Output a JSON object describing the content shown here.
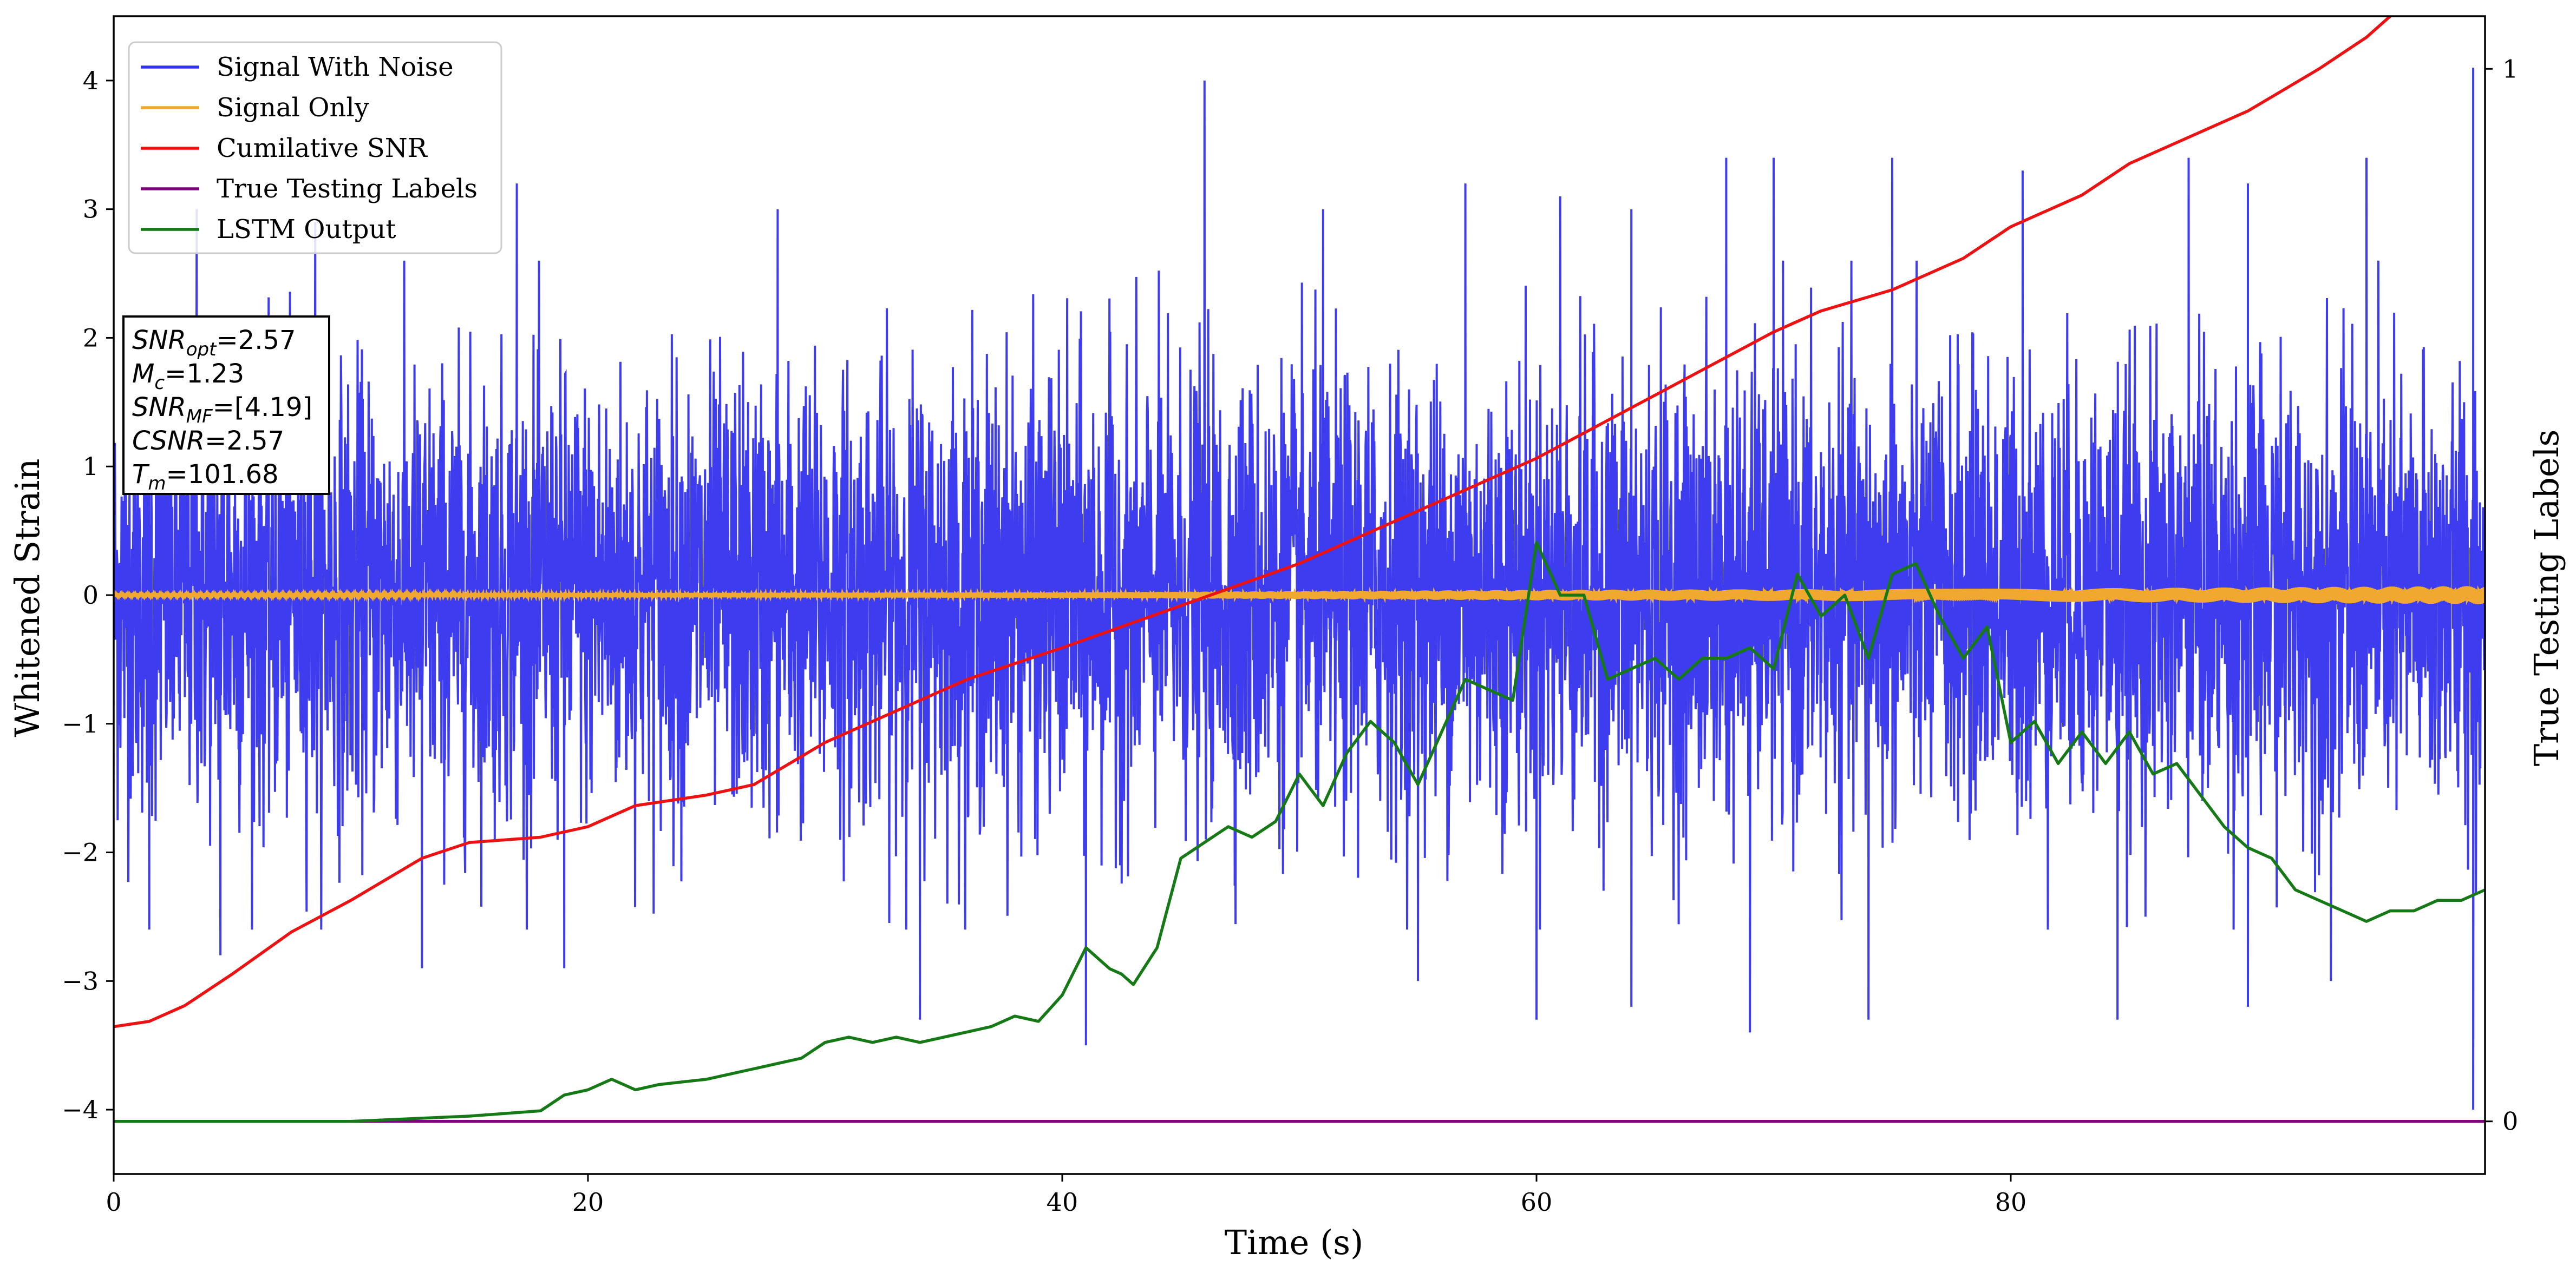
{
  "chart_data": {
    "type": "line",
    "xlabel": "Time (s)",
    "ylabel": "Whitened Strain",
    "y2label": "True Testing Labels",
    "xlim": [
      0,
      100
    ],
    "ylim": [
      -4.5,
      4.5
    ],
    "y2lim": [
      -0.05,
      1.05
    ],
    "x_ticks": [
      0,
      20,
      40,
      60,
      80
    ],
    "y_ticks": [
      -4,
      -3,
      -2,
      -1,
      0,
      1,
      2,
      3,
      4
    ],
    "y2_ticks": [
      0,
      1
    ],
    "legend_position": "upper-left",
    "grid": false,
    "series": [
      {
        "name": "Signal With Noise",
        "color": "#3333ee",
        "axis": "left",
        "description_values": {
          "typical_abs_amplitude": 1.0,
          "max": 4.1,
          "min": -4.0
        },
        "peaks": [
          [
            3.5,
            3.0
          ],
          [
            8.5,
            2.9
          ],
          [
            17.0,
            3.2
          ],
          [
            28.0,
            3.0
          ],
          [
            46.0,
            4.0
          ],
          [
            51.0,
            3.0
          ],
          [
            57.0,
            3.2
          ],
          [
            61.0,
            3.1
          ],
          [
            64.0,
            3.0
          ],
          [
            68.0,
            3.4
          ],
          [
            70.0,
            3.4
          ],
          [
            75.0,
            3.4
          ],
          [
            80.5,
            3.3
          ],
          [
            87.5,
            3.4
          ],
          [
            90.0,
            3.2
          ],
          [
            95.0,
            3.4
          ],
          [
            99.5,
            4.1
          ]
        ],
        "troughs": [
          [
            1.5,
            -2.6
          ],
          [
            4.5,
            -2.8
          ],
          [
            13.0,
            -2.9
          ],
          [
            19.0,
            -2.9
          ],
          [
            34.0,
            -3.3
          ],
          [
            41.0,
            -3.5
          ],
          [
            55.0,
            -3.0
          ],
          [
            60.0,
            -3.3
          ],
          [
            64.0,
            -3.2
          ],
          [
            69.0,
            -3.4
          ],
          [
            74.0,
            -3.3
          ],
          [
            84.5,
            -3.3
          ],
          [
            90.0,
            -3.2
          ],
          [
            93.5,
            -3.0
          ],
          [
            99.5,
            -4.0
          ]
        ]
      },
      {
        "name": "Signal Only",
        "color": "#f0a830",
        "axis": "left",
        "amplitude_points": [
          [
            0,
            0.01
          ],
          [
            20,
            0.015
          ],
          [
            40,
            0.02
          ],
          [
            60,
            0.04
          ],
          [
            80,
            0.05
          ],
          [
            100,
            0.07
          ]
        ]
      },
      {
        "name": "Cumilative SNR",
        "color": "#ee1111",
        "axis": "right",
        "points": [
          [
            0,
            0.09
          ],
          [
            1.5,
            0.095
          ],
          [
            3,
            0.11
          ],
          [
            5,
            0.14
          ],
          [
            7.5,
            0.18
          ],
          [
            10,
            0.21
          ],
          [
            13,
            0.25
          ],
          [
            15,
            0.265
          ],
          [
            18,
            0.27
          ],
          [
            20,
            0.28
          ],
          [
            22,
            0.3
          ],
          [
            25,
            0.31
          ],
          [
            27,
            0.32
          ],
          [
            30,
            0.36
          ],
          [
            33,
            0.39
          ],
          [
            36,
            0.42
          ],
          [
            40,
            0.45
          ],
          [
            45,
            0.49
          ],
          [
            50,
            0.53
          ],
          [
            55,
            0.58
          ],
          [
            60,
            0.63
          ],
          [
            65,
            0.69
          ],
          [
            70,
            0.75
          ],
          [
            72,
            0.77
          ],
          [
            75,
            0.79
          ],
          [
            78,
            0.82
          ],
          [
            80,
            0.85
          ],
          [
            83,
            0.88
          ],
          [
            85,
            0.91
          ],
          [
            88,
            0.94
          ],
          [
            90,
            0.96
          ],
          [
            93,
            1.0
          ],
          [
            95,
            1.03
          ],
          [
            97,
            1.07
          ],
          [
            100,
            1.1
          ]
        ]
      },
      {
        "name": "True Testing Labels",
        "color": "#800080",
        "axis": "right",
        "points": [
          [
            0,
            0
          ],
          [
            100,
            0
          ]
        ]
      },
      {
        "name": "LSTM Output",
        "color": "#157a15",
        "axis": "right",
        "points": [
          [
            0,
            0.0
          ],
          [
            10,
            0.0
          ],
          [
            15,
            0.005
          ],
          [
            18,
            0.01
          ],
          [
            19,
            0.025
          ],
          [
            20,
            0.03
          ],
          [
            21,
            0.04
          ],
          [
            22,
            0.03
          ],
          [
            23,
            0.035
          ],
          [
            25,
            0.04
          ],
          [
            26,
            0.045
          ],
          [
            27,
            0.05
          ],
          [
            28,
            0.055
          ],
          [
            29,
            0.06
          ],
          [
            30,
            0.075
          ],
          [
            31,
            0.08
          ],
          [
            32,
            0.075
          ],
          [
            33,
            0.08
          ],
          [
            34,
            0.075
          ],
          [
            36,
            0.085
          ],
          [
            37,
            0.09
          ],
          [
            38,
            0.1
          ],
          [
            39,
            0.095
          ],
          [
            40,
            0.12
          ],
          [
            41,
            0.165
          ],
          [
            42,
            0.145
          ],
          [
            42.5,
            0.14
          ],
          [
            43,
            0.13
          ],
          [
            44,
            0.165
          ],
          [
            45,
            0.25
          ],
          [
            46,
            0.265
          ],
          [
            47,
            0.28
          ],
          [
            48,
            0.27
          ],
          [
            49,
            0.285
          ],
          [
            50,
            0.33
          ],
          [
            51,
            0.3
          ],
          [
            52,
            0.35
          ],
          [
            53,
            0.38
          ],
          [
            54,
            0.36
          ],
          [
            55,
            0.32
          ],
          [
            56,
            0.37
          ],
          [
            57,
            0.42
          ],
          [
            58,
            0.41
          ],
          [
            59,
            0.4
          ],
          [
            60,
            0.55
          ],
          [
            61,
            0.5
          ],
          [
            62,
            0.5
          ],
          [
            63,
            0.42
          ],
          [
            64,
            0.43
          ],
          [
            65,
            0.44
          ],
          [
            66,
            0.42
          ],
          [
            67,
            0.44
          ],
          [
            68,
            0.44
          ],
          [
            69,
            0.45
          ],
          [
            70,
            0.43
          ],
          [
            71,
            0.52
          ],
          [
            72,
            0.48
          ],
          [
            73,
            0.5
          ],
          [
            74,
            0.44
          ],
          [
            75,
            0.52
          ],
          [
            76,
            0.53
          ],
          [
            77,
            0.48
          ],
          [
            78,
            0.44
          ],
          [
            79,
            0.47
          ],
          [
            80,
            0.36
          ],
          [
            81,
            0.38
          ],
          [
            82,
            0.34
          ],
          [
            83,
            0.37
          ],
          [
            84,
            0.34
          ],
          [
            85,
            0.37
          ],
          [
            86,
            0.33
          ],
          [
            87,
            0.34
          ],
          [
            88,
            0.31
          ],
          [
            89,
            0.28
          ],
          [
            90,
            0.26
          ],
          [
            91,
            0.25
          ],
          [
            92,
            0.22
          ],
          [
            93,
            0.21
          ],
          [
            94,
            0.2
          ],
          [
            95,
            0.19
          ],
          [
            96,
            0.2
          ],
          [
            97,
            0.2
          ],
          [
            98,
            0.21
          ],
          [
            99,
            0.21
          ],
          [
            100,
            0.22
          ]
        ]
      }
    ],
    "info_box": [
      {
        "var": "SNR",
        "sub": "opt",
        "value": "=2.57"
      },
      {
        "var": "M",
        "sub": "c",
        "value": "=1.23"
      },
      {
        "var": "SNR",
        "sub": "MF",
        "value": "=[4.19]"
      },
      {
        "var": "CSNR",
        "sub": "",
        "value": "=2.57"
      },
      {
        "var": "T",
        "sub": "m",
        "value": "=101.68"
      }
    ]
  }
}
